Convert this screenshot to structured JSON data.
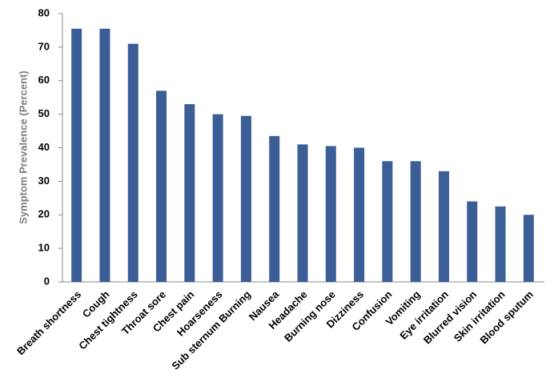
{
  "chart_data": {
    "type": "bar",
    "y_label": "Symptom Prevalence (Percent)",
    "categories": [
      "Breath shortness",
      "Cough",
      "Chest tightness",
      "Throat sore",
      "Chest pain",
      "Hoarseness",
      "Sub sternum Burning",
      "Nausea",
      "Headache",
      "Burning nose",
      "Dizziness",
      "Confusion",
      "Vomiting",
      "Eye irritation",
      "Blurred vision",
      "Skin irritation",
      "Blood sputum"
    ],
    "values": [
      75.5,
      75.5,
      71,
      57,
      53,
      50,
      49.5,
      43.5,
      41,
      40.5,
      40,
      36,
      36,
      33,
      24,
      22.5,
      20
    ],
    "color": "#3b5e97",
    "ylim": [
      0,
      80
    ],
    "yticks": [
      0,
      10,
      20,
      30,
      40,
      50,
      60,
      70,
      80
    ],
    "grid": false
  }
}
